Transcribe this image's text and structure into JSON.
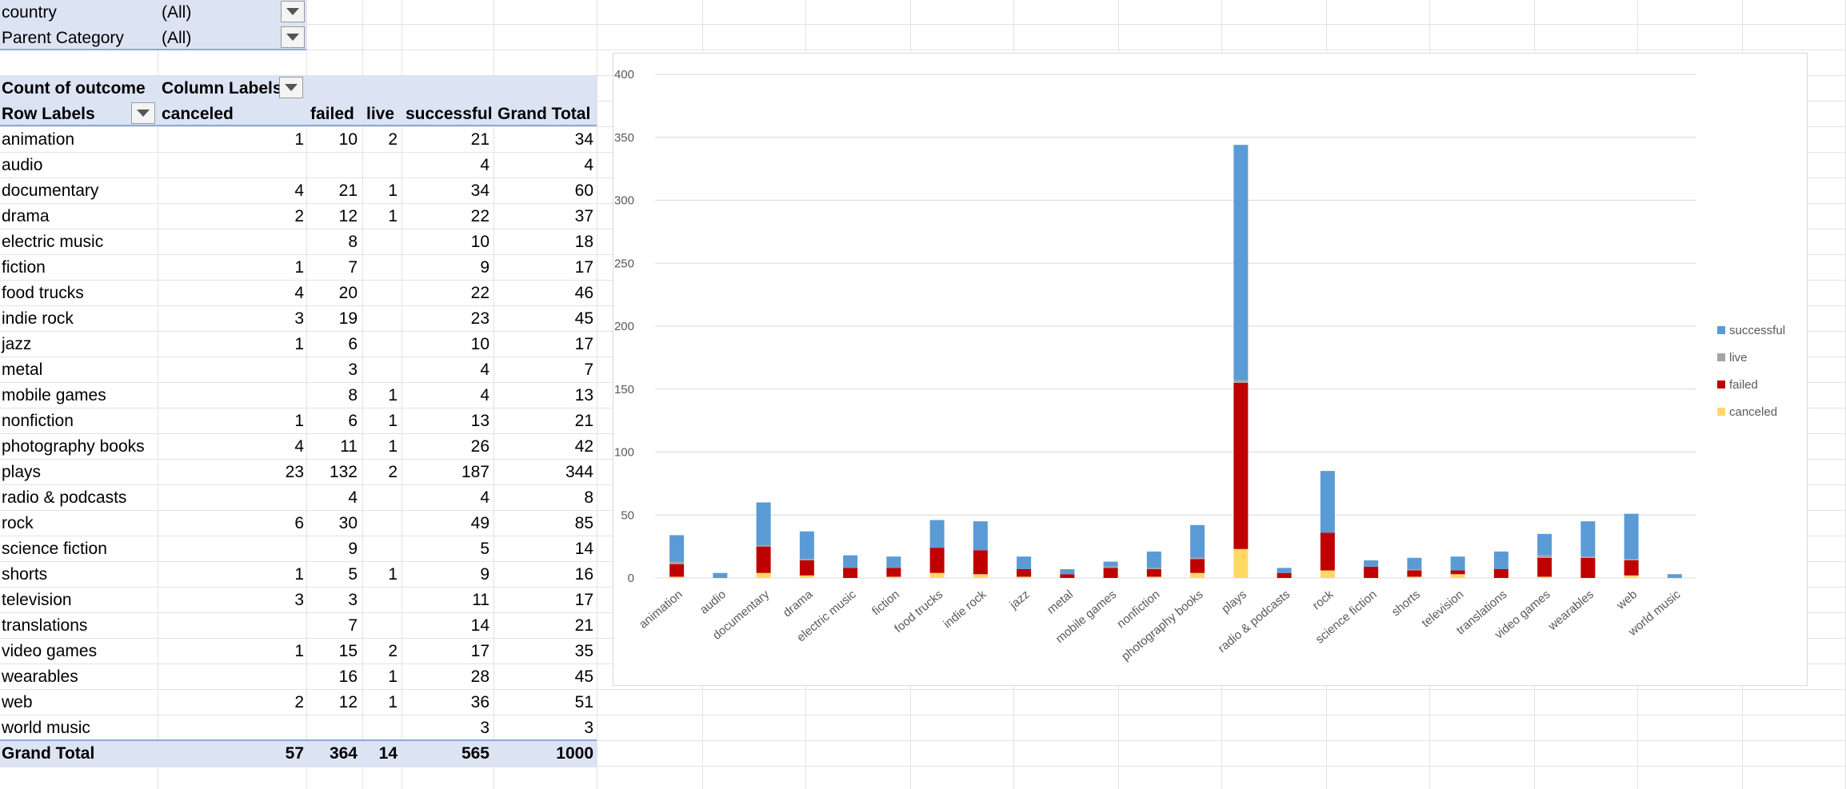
{
  "filters": [
    {
      "label": "country",
      "value": "(All)"
    },
    {
      "label": "Parent Category",
      "value": "(All)"
    }
  ],
  "pivot": {
    "corner_label": "Count of outcome",
    "column_labels": "Column Labels",
    "row_labels": "Row Labels",
    "columns": [
      "canceled",
      "failed",
      "live",
      "successful",
      "Grand Total"
    ],
    "rows": [
      {
        "label": "animation",
        "canceled": "1",
        "failed": "10",
        "live": "2",
        "successful": "21",
        "total": "34"
      },
      {
        "label": "audio",
        "canceled": "",
        "failed": "",
        "live": "",
        "successful": "4",
        "total": "4"
      },
      {
        "label": "documentary",
        "canceled": "4",
        "failed": "21",
        "live": "1",
        "successful": "34",
        "total": "60"
      },
      {
        "label": "drama",
        "canceled": "2",
        "failed": "12",
        "live": "1",
        "successful": "22",
        "total": "37"
      },
      {
        "label": "electric music",
        "canceled": "",
        "failed": "8",
        "live": "",
        "successful": "10",
        "total": "18"
      },
      {
        "label": "fiction",
        "canceled": "1",
        "failed": "7",
        "live": "",
        "successful": "9",
        "total": "17"
      },
      {
        "label": "food trucks",
        "canceled": "4",
        "failed": "20",
        "live": "",
        "successful": "22",
        "total": "46"
      },
      {
        "label": "indie rock",
        "canceled": "3",
        "failed": "19",
        "live": "",
        "successful": "23",
        "total": "45"
      },
      {
        "label": "jazz",
        "canceled": "1",
        "failed": "6",
        "live": "",
        "successful": "10",
        "total": "17"
      },
      {
        "label": "metal",
        "canceled": "",
        "failed": "3",
        "live": "",
        "successful": "4",
        "total": "7"
      },
      {
        "label": "mobile games",
        "canceled": "",
        "failed": "8",
        "live": "1",
        "successful": "4",
        "total": "13"
      },
      {
        "label": "nonfiction",
        "canceled": "1",
        "failed": "6",
        "live": "1",
        "successful": "13",
        "total": "21"
      },
      {
        "label": "photography books",
        "canceled": "4",
        "failed": "11",
        "live": "1",
        "successful": "26",
        "total": "42"
      },
      {
        "label": "plays",
        "canceled": "23",
        "failed": "132",
        "live": "2",
        "successful": "187",
        "total": "344"
      },
      {
        "label": "radio & podcasts",
        "canceled": "",
        "failed": "4",
        "live": "",
        "successful": "4",
        "total": "8"
      },
      {
        "label": "rock",
        "canceled": "6",
        "failed": "30",
        "live": "",
        "successful": "49",
        "total": "85"
      },
      {
        "label": "science fiction",
        "canceled": "",
        "failed": "9",
        "live": "",
        "successful": "5",
        "total": "14"
      },
      {
        "label": "shorts",
        "canceled": "1",
        "failed": "5",
        "live": "1",
        "successful": "9",
        "total": "16"
      },
      {
        "label": "television",
        "canceled": "3",
        "failed": "3",
        "live": "",
        "successful": "11",
        "total": "17"
      },
      {
        "label": "translations",
        "canceled": "",
        "failed": "7",
        "live": "",
        "successful": "14",
        "total": "21"
      },
      {
        "label": "video games",
        "canceled": "1",
        "failed": "15",
        "live": "2",
        "successful": "17",
        "total": "35"
      },
      {
        "label": "wearables",
        "canceled": "",
        "failed": "16",
        "live": "1",
        "successful": "28",
        "total": "45"
      },
      {
        "label": "web",
        "canceled": "2",
        "failed": "12",
        "live": "1",
        "successful": "36",
        "total": "51"
      },
      {
        "label": "world music",
        "canceled": "",
        "failed": "",
        "live": "",
        "successful": "3",
        "total": "3"
      }
    ],
    "grand_total": {
      "label": "Grand Total",
      "canceled": "57",
      "failed": "364",
      "live": "14",
      "successful": "565",
      "total": "1000"
    }
  },
  "colors": {
    "canceled": "#ffd966",
    "failed": "#c00000",
    "live": "#a5a5a5",
    "successful": "#5b9bd5",
    "header_band": "#dce3f3",
    "grid": "#d9d9d9"
  },
  "chart_data": {
    "type": "bar",
    "stacked": true,
    "categories": [
      "animation",
      "audio",
      "documentary",
      "drama",
      "electric music",
      "fiction",
      "food trucks",
      "indie rock",
      "jazz",
      "metal",
      "mobile games",
      "nonfiction",
      "photography books",
      "plays",
      "radio & podcasts",
      "rock",
      "science fiction",
      "shorts",
      "television",
      "translations",
      "video games",
      "wearables",
      "web",
      "world music"
    ],
    "series": [
      {
        "name": "canceled",
        "values": [
          1,
          0,
          4,
          2,
          0,
          1,
          4,
          3,
          1,
          0,
          0,
          1,
          4,
          23,
          0,
          6,
          0,
          1,
          3,
          0,
          1,
          0,
          2,
          0
        ]
      },
      {
        "name": "failed",
        "values": [
          10,
          0,
          21,
          12,
          8,
          7,
          20,
          19,
          6,
          3,
          8,
          6,
          11,
          132,
          4,
          30,
          9,
          5,
          3,
          7,
          15,
          16,
          12,
          0
        ]
      },
      {
        "name": "live",
        "values": [
          2,
          0,
          1,
          1,
          0,
          0,
          0,
          0,
          0,
          0,
          1,
          1,
          1,
          2,
          0,
          0,
          0,
          1,
          0,
          0,
          2,
          1,
          1,
          0
        ]
      },
      {
        "name": "successful",
        "values": [
          21,
          4,
          34,
          22,
          10,
          9,
          22,
          23,
          10,
          4,
          4,
          13,
          26,
          187,
          4,
          49,
          5,
          9,
          11,
          14,
          17,
          28,
          36,
          3
        ]
      }
    ],
    "yticks": [
      0,
      50,
      100,
      150,
      200,
      250,
      300,
      350,
      400
    ],
    "ylim": [
      0,
      400
    ],
    "grid": true,
    "legend": {
      "placement": "right",
      "entries": [
        "successful",
        "live",
        "failed",
        "canceled"
      ]
    }
  }
}
